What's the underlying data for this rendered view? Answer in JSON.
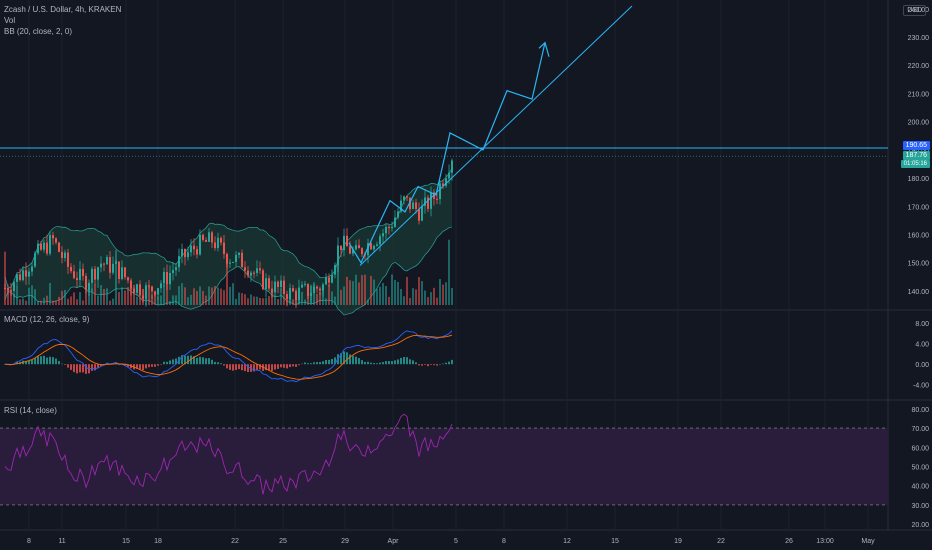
{
  "header": {
    "title": "Zcash / U.S. Dollar, 4h, KRAKEN",
    "vol_label": "Vol",
    "bb_label": "BB (20, close, 2, 0)",
    "currency": "USD"
  },
  "macd_label": "MACD (12, 26, close, 9)",
  "rsi_label": "RSI (14, close)",
  "price_tags": {
    "line": "190.65",
    "last": "187.76",
    "countdown": "01:05:16"
  },
  "axes": {
    "price_ticks": [
      "240.00",
      "230.00",
      "220.00",
      "210.00",
      "200.00",
      "190.00",
      "180.00",
      "170.00",
      "160.00",
      "150.00",
      "140.00"
    ],
    "macd_ticks": [
      "8.00",
      "4.00",
      "0.00",
      "-4.00"
    ],
    "rsi_ticks": [
      "80.00",
      "70.00",
      "60.00",
      "50.00",
      "40.00",
      "30.00",
      "20.00"
    ],
    "time_ticks": [
      "8",
      "11",
      "15",
      "18",
      "22",
      "25",
      "29",
      "Apr",
      "5",
      "8",
      "12",
      "15",
      "19",
      "22",
      "26",
      "13:00",
      "May"
    ]
  },
  "colors": {
    "background": "#131722",
    "up": "#26a69a",
    "down": "#ef5350",
    "drawing": "#29b6f6",
    "bb_fill": "#1b3a35",
    "rsi_band": "#2a1c3b",
    "rsi_line": "#9c27b0",
    "macd_line": "#2962ff",
    "signal_line": "#ff6d00"
  },
  "chart_data": {
    "type": "candlestick",
    "symbol": "ZEC/USD",
    "timeframe": "4h",
    "exchange": "KRAKEN",
    "price_range": [
      135,
      241
    ],
    "last_price": 187.76,
    "horizontal_line": 190.65,
    "price_path": [
      {
        "x": "8",
        "y": 141
      },
      {
        "x": "9",
        "y": 146
      },
      {
        "x": "10",
        "y": 153
      },
      {
        "x": "11",
        "y": 158
      },
      {
        "x": "12",
        "y": 148
      },
      {
        "x": "13",
        "y": 143
      },
      {
        "x": "14",
        "y": 150
      },
      {
        "x": "15",
        "y": 148
      },
      {
        "x": "16",
        "y": 142
      },
      {
        "x": "17",
        "y": 140
      },
      {
        "x": "18",
        "y": 144
      },
      {
        "x": "19",
        "y": 151
      },
      {
        "x": "20",
        "y": 156
      },
      {
        "x": "21",
        "y": 158
      },
      {
        "x": "22",
        "y": 152
      },
      {
        "x": "23",
        "y": 150
      },
      {
        "x": "24",
        "y": 144
      },
      {
        "x": "25",
        "y": 141
      },
      {
        "x": "26",
        "y": 139
      },
      {
        "x": "27",
        "y": 140
      },
      {
        "x": "28",
        "y": 142
      },
      {
        "x": "29",
        "y": 157
      },
      {
        "x": "30",
        "y": 153
      },
      {
        "x": "31",
        "y": 158
      },
      {
        "x": "Apr 1",
        "y": 162
      },
      {
        "x": "Apr 2",
        "y": 172
      },
      {
        "x": "Apr 3",
        "y": 168
      },
      {
        "x": "Apr 4",
        "y": 174
      },
      {
        "x": "Apr 4 PM",
        "y": 188
      }
    ],
    "projection_path": [
      {
        "x": "Apr 5",
        "y": 196
      },
      {
        "x": "Apr 6",
        "y": 190
      },
      {
        "x": "Apr 7",
        "y": 211
      },
      {
        "x": "Apr 9",
        "y": 208
      },
      {
        "x": "Apr 10",
        "y": 228
      }
    ],
    "rsi_levels": [
      70,
      30
    ],
    "rsi_range": [
      18,
      82
    ],
    "macd_range": [
      -6,
      9
    ]
  }
}
